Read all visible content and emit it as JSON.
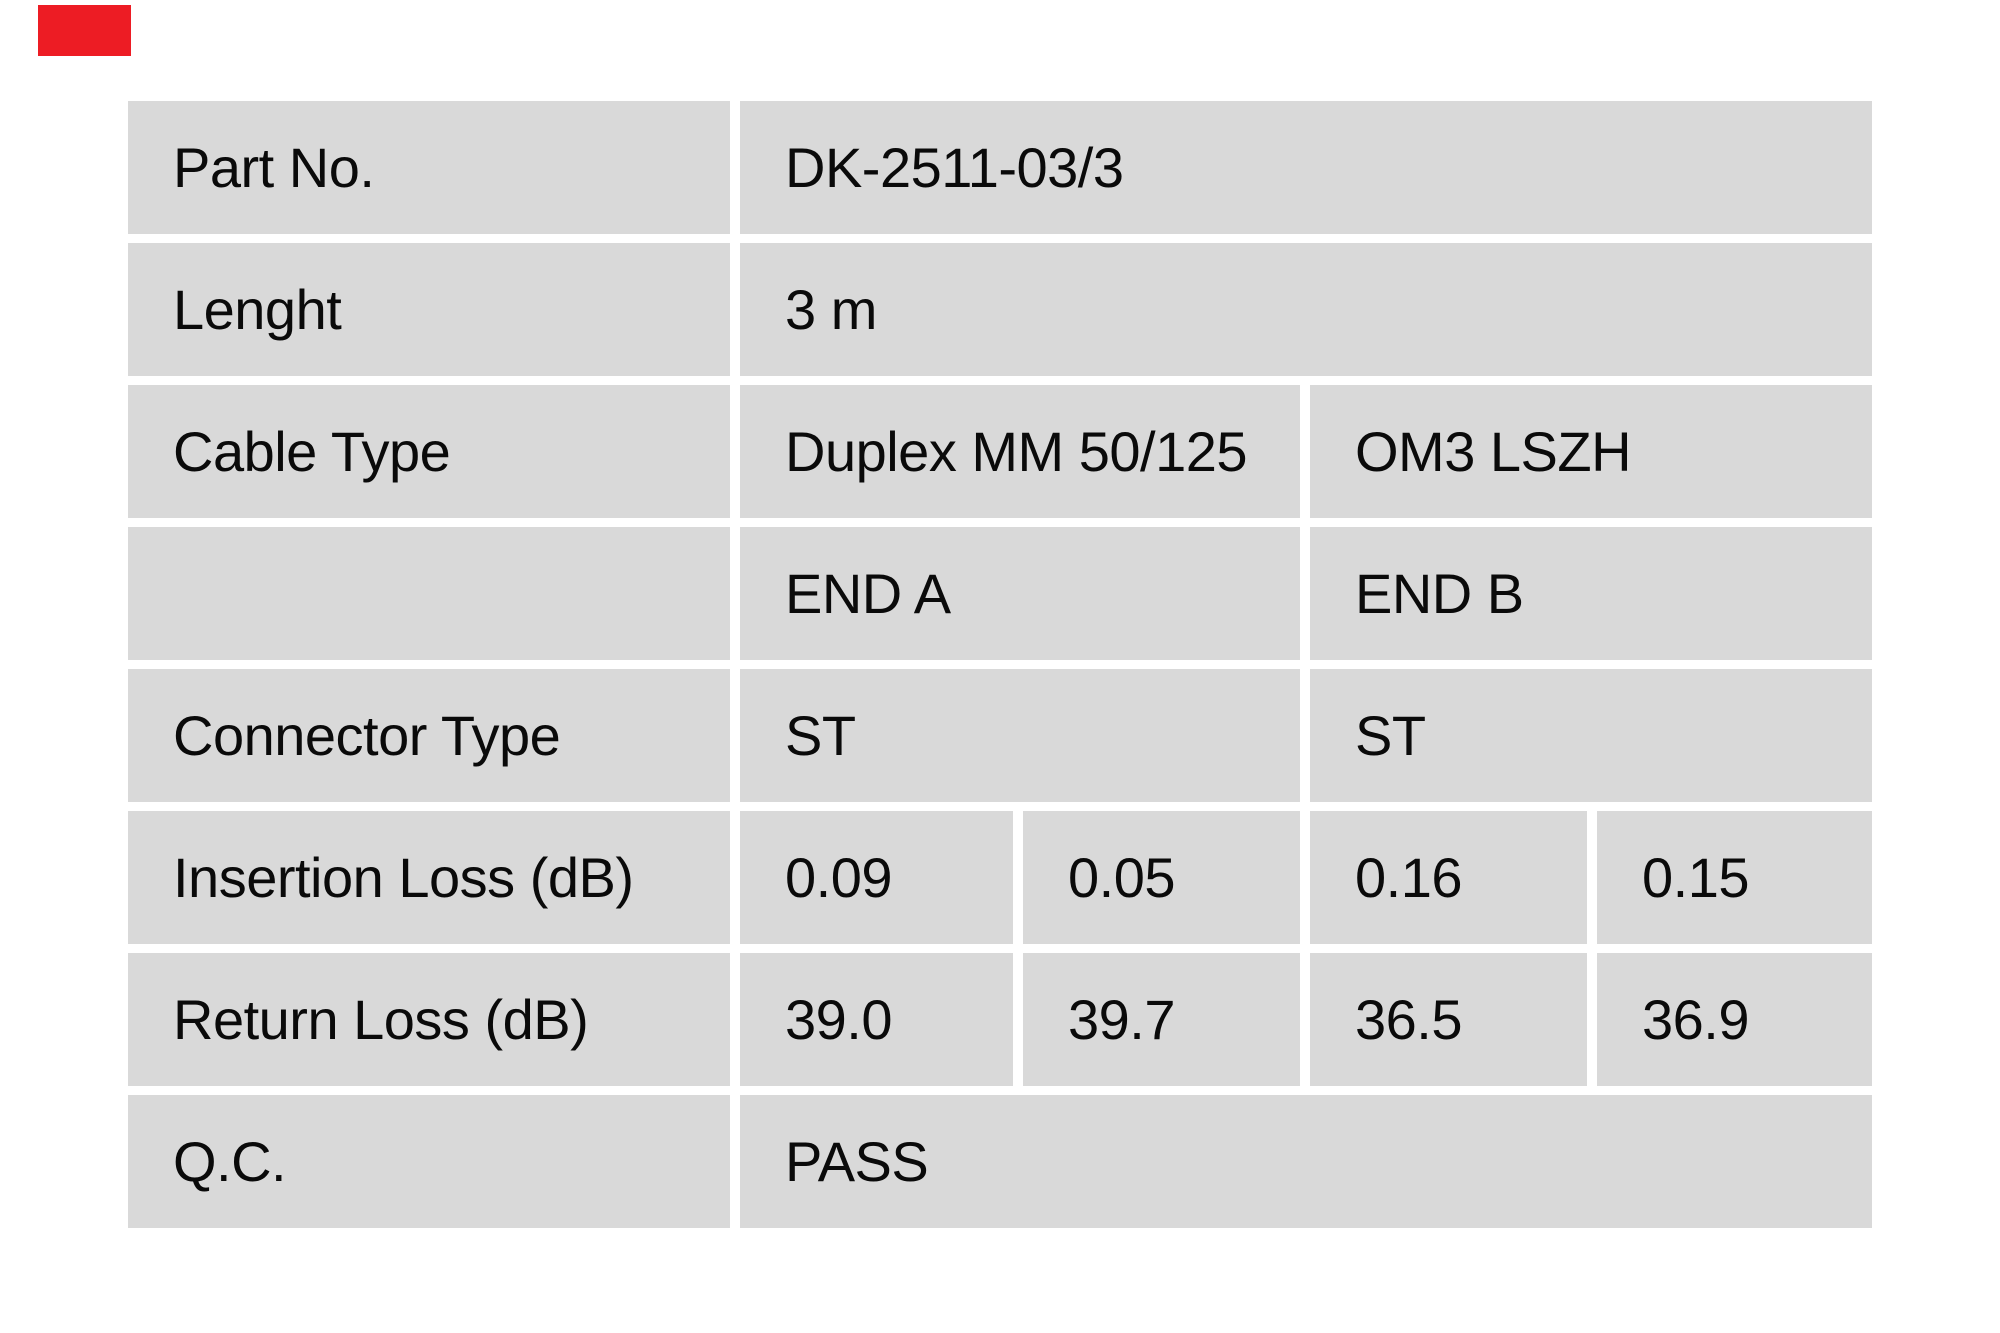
{
  "theme": {
    "page_bg": "#ffffff",
    "cell_bg": "#d9d9d9",
    "text_color": "#0a0a0a",
    "marker_red": "#ed1c24"
  },
  "table": {
    "rows": [
      {
        "type": "full",
        "label": "Part No.",
        "value": "DK-2511-03/3"
      },
      {
        "type": "full",
        "label": "Lenght",
        "value": "3 m"
      },
      {
        "type": "split",
        "label": "Cable Type",
        "end_a": "Duplex MM 50/125",
        "end_b": "OM3 LSZH"
      },
      {
        "type": "split",
        "label": "",
        "end_a": "END A",
        "end_b": "END B"
      },
      {
        "type": "split",
        "label": "Connector Type",
        "end_a": "ST",
        "end_b": "ST"
      },
      {
        "type": "quad",
        "label": "Insertion Loss (dB)",
        "values": [
          "0.09",
          "0.05",
          "0.16",
          "0.15"
        ]
      },
      {
        "type": "quad",
        "label": "Return Loss (dB)",
        "values": [
          "39.0",
          "39.7",
          "36.5",
          "36.9"
        ]
      },
      {
        "type": "full",
        "label": "Q.C.",
        "value": "PASS"
      }
    ]
  }
}
